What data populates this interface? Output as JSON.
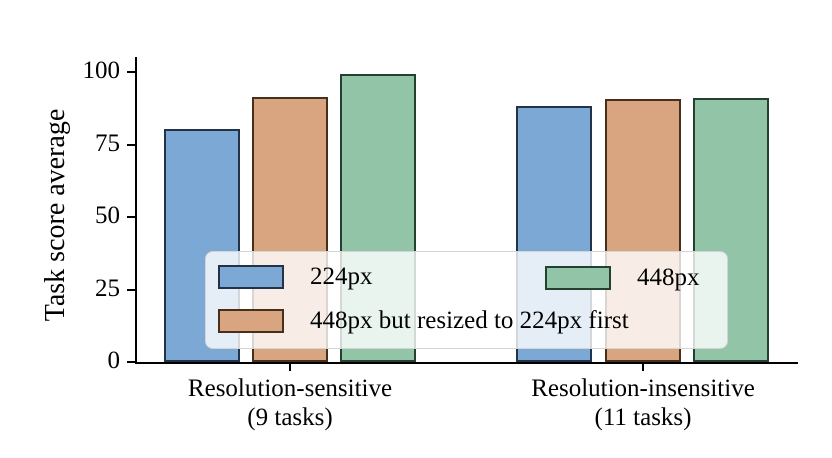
{
  "chart_data": {
    "type": "bar",
    "title": "",
    "ylabel": "Task score average",
    "xlabel": "",
    "ylim": [
      0,
      105
    ],
    "yticks": [
      0,
      25,
      50,
      75,
      100
    ],
    "grid": false,
    "legend_position": "inside lower-center, 2 columns, semi-transparent white box",
    "categories": [
      {
        "label": "Resolution-sensitive",
        "sub": "(9 tasks)"
      },
      {
        "label": "Resolution-insensitive",
        "sub": "(11 tasks)"
      }
    ],
    "series": [
      {
        "name": "224px",
        "values": [
          80.3,
          88.4
        ],
        "fill": "#7CA8D5",
        "edge": "#233247"
      },
      {
        "name": "448px but resized to 224px first",
        "values": [
          91.3,
          90.6
        ],
        "fill": "#D9A580",
        "edge": "#46301C"
      },
      {
        "name": "448px",
        "values": [
          99.2,
          91.2
        ],
        "fill": "#92C5A8",
        "edge": "#25402F"
      }
    ]
  },
  "colors": {
    "background": "#ffffff",
    "axis": "#000000",
    "text": "#000000",
    "legend_bg": "rgba(255,255,255,0.8)",
    "legend_border": "#d4d4d4"
  }
}
